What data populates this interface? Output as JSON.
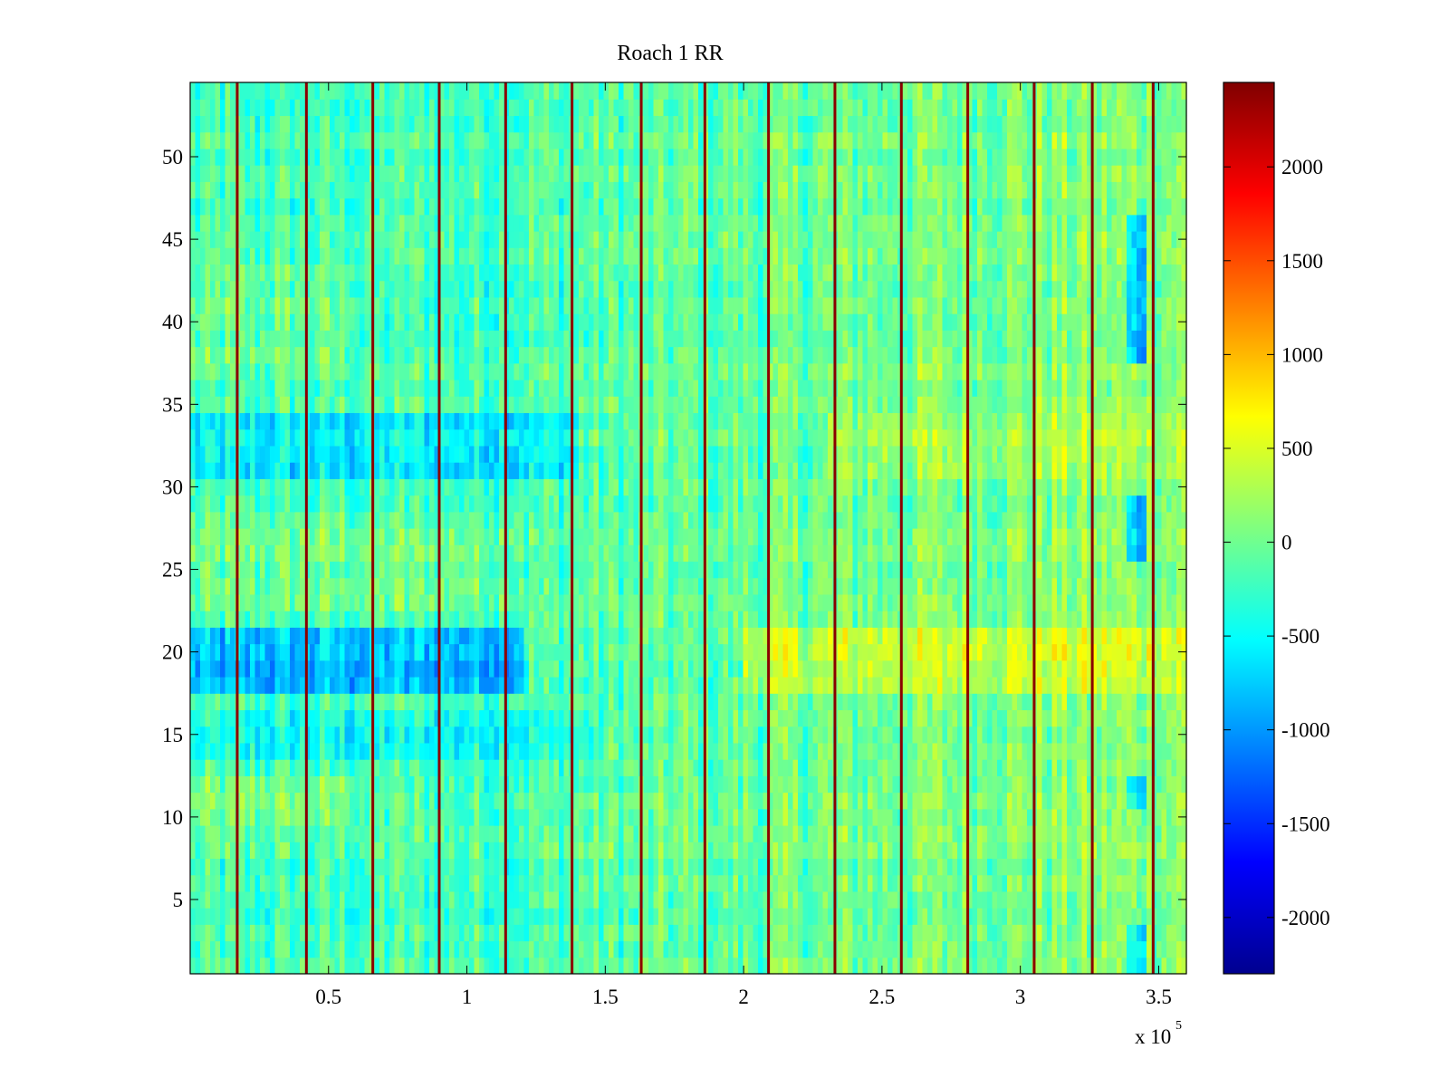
{
  "chart_data": {
    "type": "heatmap",
    "title": "Roach 1 RR",
    "xlabel": "",
    "ylabel": "",
    "x_multiplier": "x 10",
    "x_multiplier_exp": "5",
    "xlim": [
      1,
      360000
    ],
    "ylim": [
      0.5,
      54.5
    ],
    "rows": 54,
    "x_ticks": [
      0.5,
      1,
      1.5,
      2,
      2.5,
      3,
      3.5
    ],
    "x_tick_labels": [
      "0.5",
      "1",
      "1.5",
      "2",
      "2.5",
      "3",
      "3.5"
    ],
    "y_ticks": [
      5,
      10,
      15,
      20,
      25,
      30,
      35,
      40,
      45,
      50
    ],
    "y_tick_labels": [
      "5",
      "10",
      "15",
      "20",
      "25",
      "30",
      "35",
      "40",
      "45",
      "50"
    ],
    "colormap": "jet",
    "clim": [
      -2300,
      2450
    ],
    "colorbar_ticks": [
      2000,
      1500,
      1000,
      500,
      0,
      -500,
      -1000,
      -1500,
      -2000
    ],
    "colorbar_tick_labels": [
      "2000",
      "1500",
      "1000",
      "500",
      "0",
      "-500",
      "-1000",
      "-1500",
      "-2000"
    ],
    "background_value": -150,
    "spike_columns_x": [
      17000,
      42000,
      66000,
      90000,
      114000,
      138000,
      163000,
      186000,
      209000,
      233000,
      257000,
      281000,
      305000,
      326000,
      348000
    ],
    "spike_value": 2400,
    "trend_by_x": {
      "x": [
        0,
        100000,
        200000,
        300000,
        360000
      ],
      "offset": [
        -80,
        -40,
        80,
        230,
        260
      ]
    },
    "row_band_offsets": [
      {
        "rows": [
          1,
          3
        ],
        "offset": 40
      },
      {
        "rows": [
          8,
          9
        ],
        "offset": 60
      },
      {
        "rows": [
          10,
          12
        ],
        "offset": 220,
        "x_range": [
          0,
          60000
        ]
      },
      {
        "rows": [
          14,
          16
        ],
        "offset": -260,
        "x_range": [
          0,
          150000
        ]
      },
      {
        "rows": [
          18,
          21
        ],
        "offset": -620,
        "x_range": [
          0,
          120000
        ]
      },
      {
        "rows": [
          18,
          21
        ],
        "offset": 380,
        "x_range": [
          200000,
          360000
        ]
      },
      {
        "rows": [
          23,
          28
        ],
        "offset": 160,
        "x_range": [
          0,
          120000
        ]
      },
      {
        "rows": [
          31,
          34
        ],
        "offset": -350,
        "x_range": [
          0,
          140000
        ]
      },
      {
        "rows": [
          31,
          34
        ],
        "offset": 220,
        "x_range": [
          230000,
          360000
        ]
      },
      {
        "rows": [
          38,
          43
        ],
        "offset": 180,
        "x_range": [
          0,
          60000
        ]
      },
      {
        "rows": [
          26,
          29
        ],
        "offset": -900,
        "x_range": [
          338000,
          345000
        ]
      },
      {
        "rows": [
          38,
          46
        ],
        "offset": -850,
        "x_range": [
          338000,
          345000
        ]
      },
      {
        "rows": [
          11,
          12
        ],
        "offset": -700,
        "x_range": [
          338000,
          345000
        ]
      },
      {
        "rows": [
          1,
          3
        ],
        "offset": -600,
        "x_range": [
          338000,
          345000
        ]
      }
    ]
  }
}
